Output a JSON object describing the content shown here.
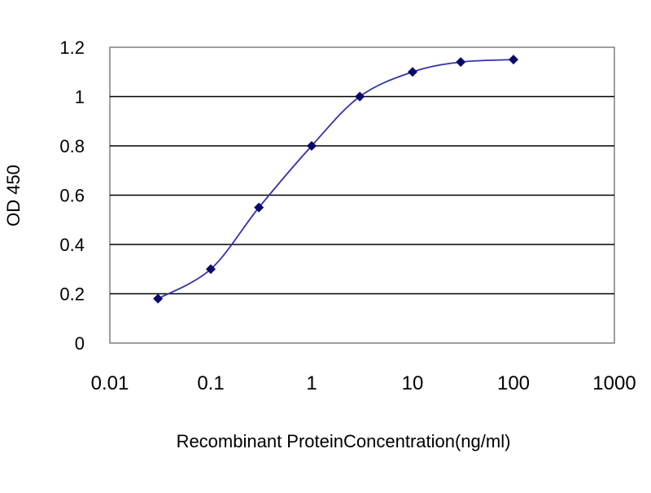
{
  "chart_data": {
    "type": "line",
    "xscale": "log",
    "x_ticks": [
      "0.01",
      "0.1",
      "1",
      "10",
      "100",
      "1000"
    ],
    "y_ticks": [
      "0",
      "0.2",
      "0.4",
      "0.6",
      "0.8",
      "1",
      "1.2"
    ],
    "xlim": [
      0.01,
      1000
    ],
    "ylim": [
      0,
      1.2
    ],
    "xlabel": "Recombinant ProteinConcentration(ng/ml)",
    "ylabel": "OD 450",
    "grid": "horizontal",
    "legend": "none",
    "series": [
      {
        "x": [
          0.03,
          0.1,
          0.3,
          1,
          3,
          10,
          30,
          100
        ],
        "y": [
          0.18,
          0.3,
          0.55,
          0.8,
          1.0,
          1.1,
          1.14,
          1.15
        ]
      }
    ],
    "colors": {
      "line": "#3333aa",
      "marker": "#0a0a6b",
      "grid": "#000000",
      "plot_border": "#7f7f7f",
      "background": "#ffffff"
    }
  }
}
